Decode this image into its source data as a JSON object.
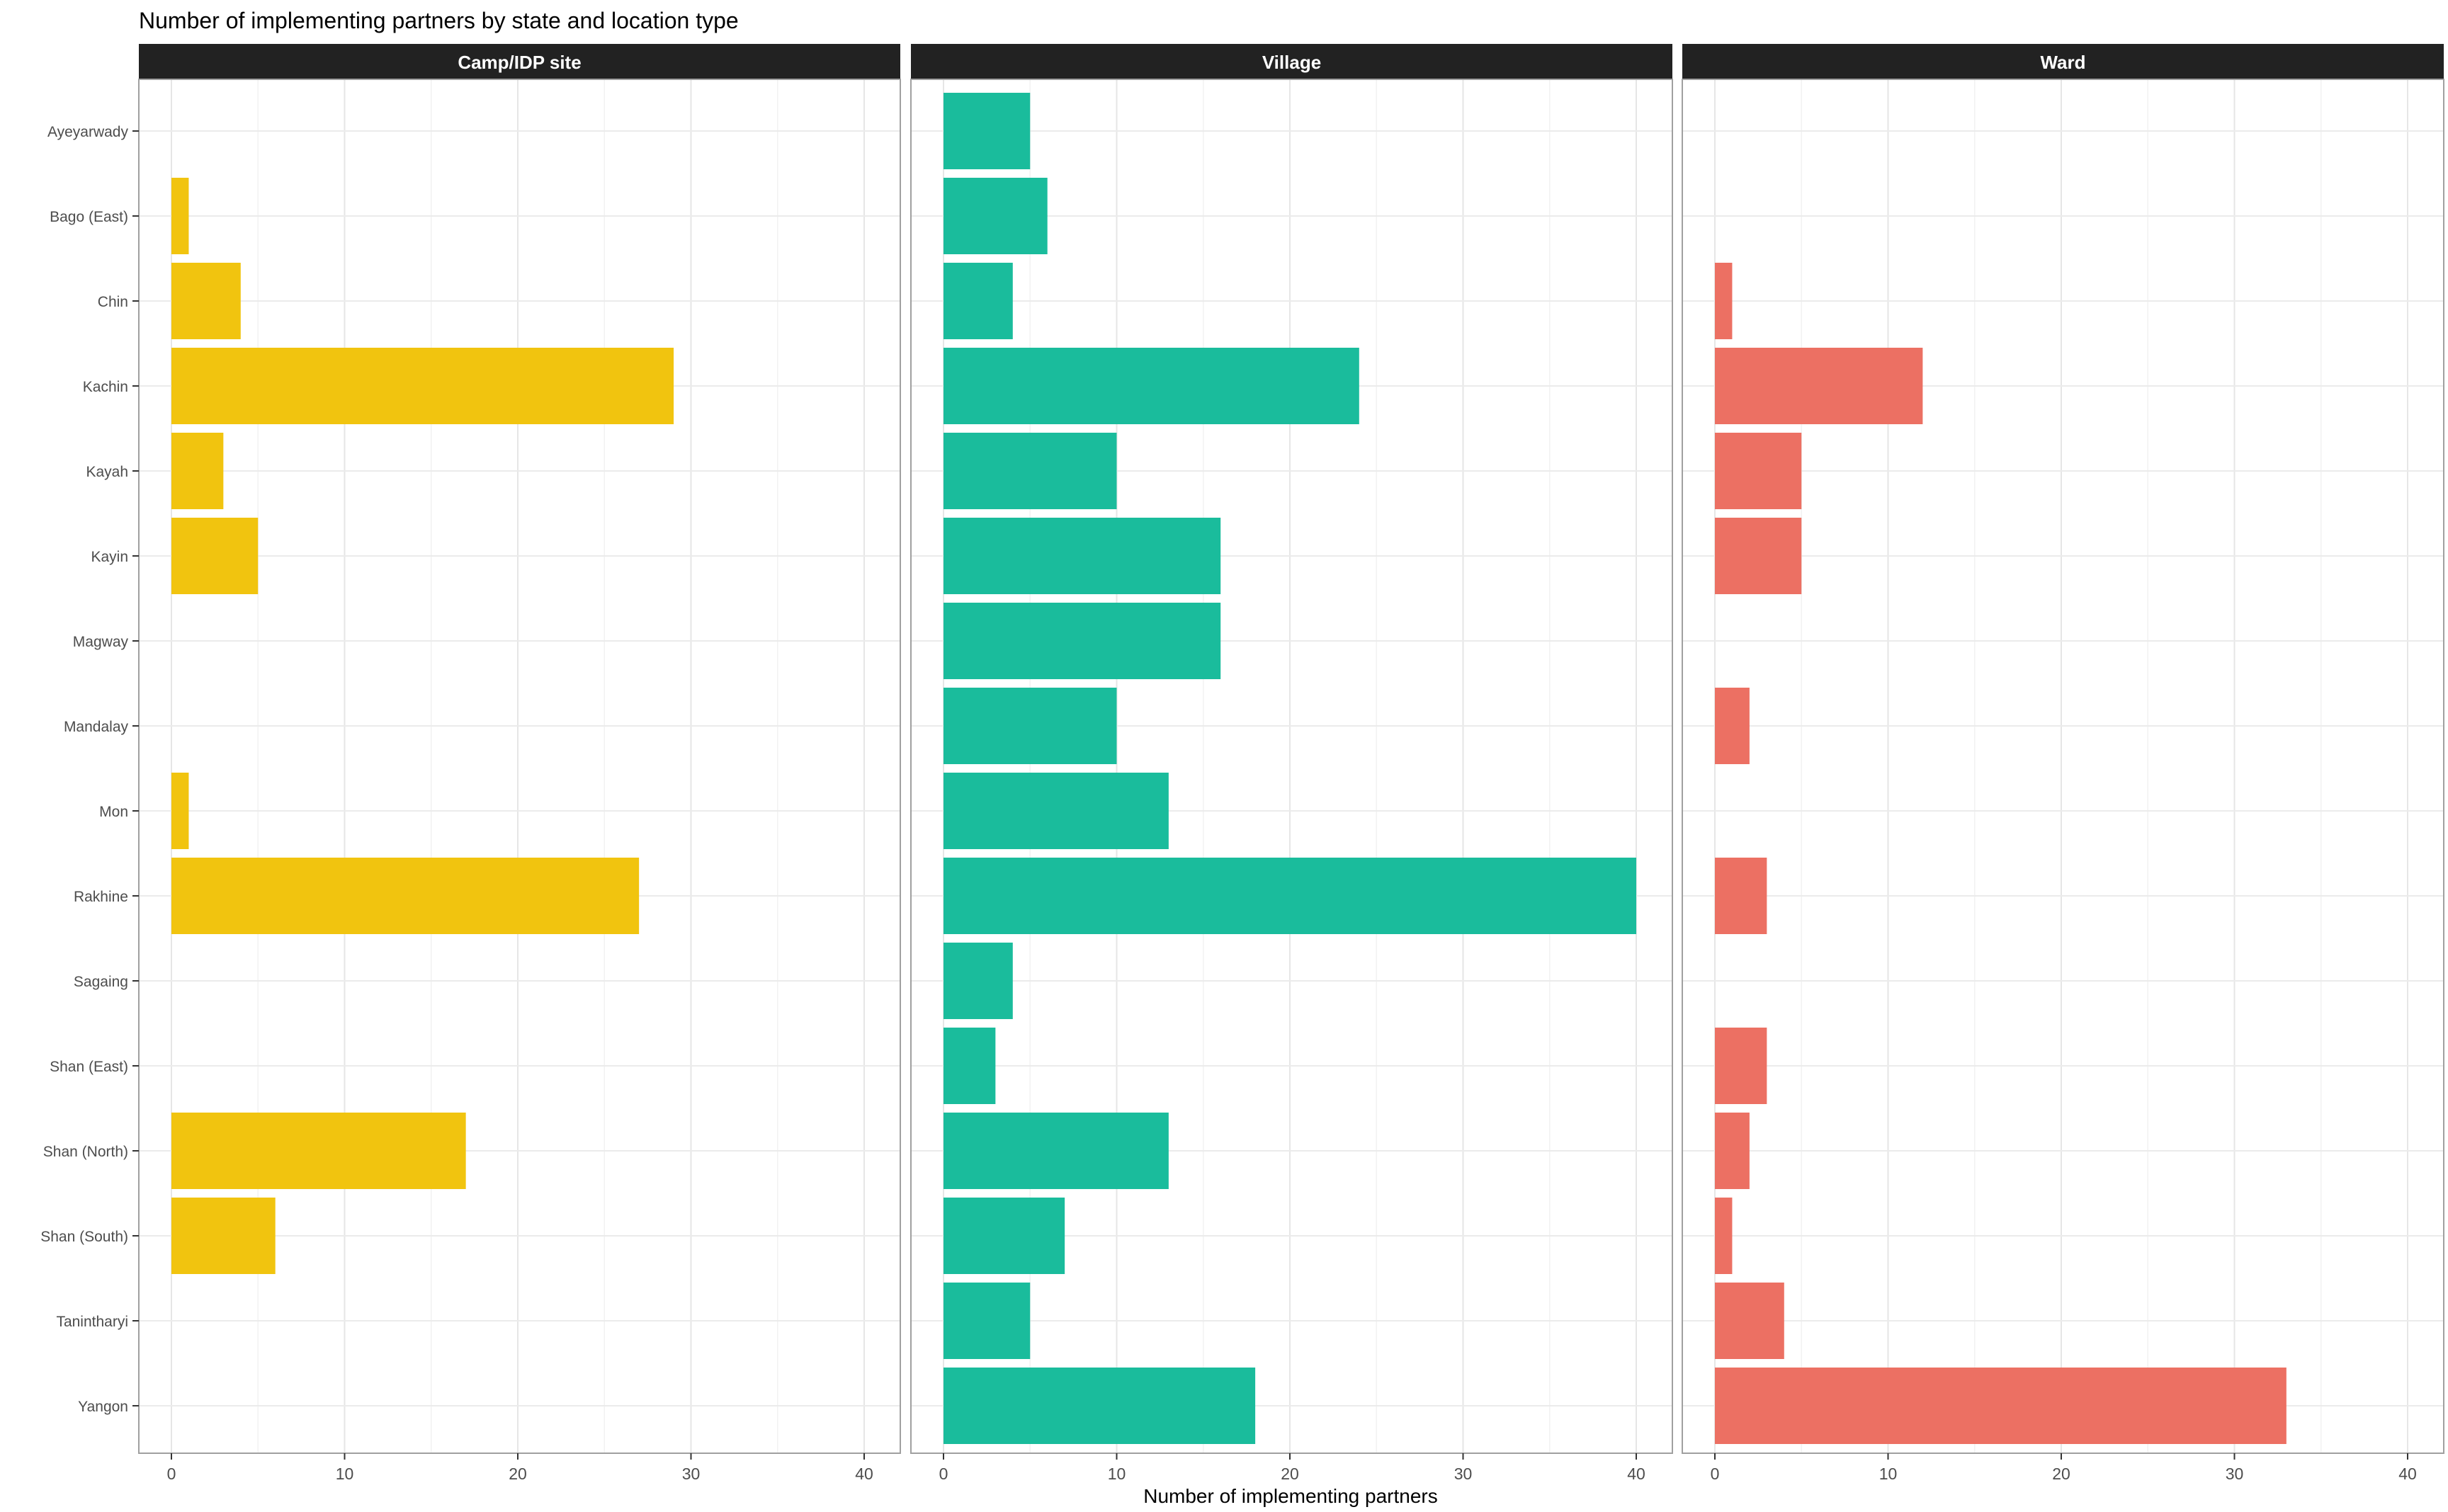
{
  "chart_data": {
    "type": "bar",
    "orientation": "horizontal",
    "title": "Number of implementing partners by state and location type",
    "xlabel": "Number of implementing partners",
    "ylabel": "",
    "xlim": [
      0,
      42
    ],
    "x_ticks": [
      0,
      10,
      20,
      30,
      40
    ],
    "grid": true,
    "legend": "none",
    "categories": [
      "Ayeyarwady",
      "Bago (East)",
      "Chin",
      "Kachin",
      "Kayah",
      "Kayin",
      "Magway",
      "Mandalay",
      "Mon",
      "Rakhine",
      "Sagaing",
      "Shan (East)",
      "Shan (North)",
      "Shan (South)",
      "Tanintharyi",
      "Yangon"
    ],
    "series": [
      {
        "name": "Camp/IDP site",
        "color": "#F1C40F",
        "values": [
          0,
          1,
          4,
          29,
          3,
          5,
          0,
          0,
          1,
          27,
          0,
          0,
          17,
          6,
          0,
          0
        ]
      },
      {
        "name": "Village",
        "color": "#1ABC9C",
        "values": [
          5,
          6,
          4,
          24,
          10,
          16,
          16,
          10,
          13,
          40,
          4,
          3,
          13,
          7,
          5,
          18
        ]
      },
      {
        "name": "Ward",
        "color": "#EC7063",
        "values": [
          0,
          0,
          1,
          12,
          5,
          5,
          0,
          2,
          0,
          3,
          0,
          3,
          2,
          1,
          4,
          33
        ]
      }
    ]
  }
}
